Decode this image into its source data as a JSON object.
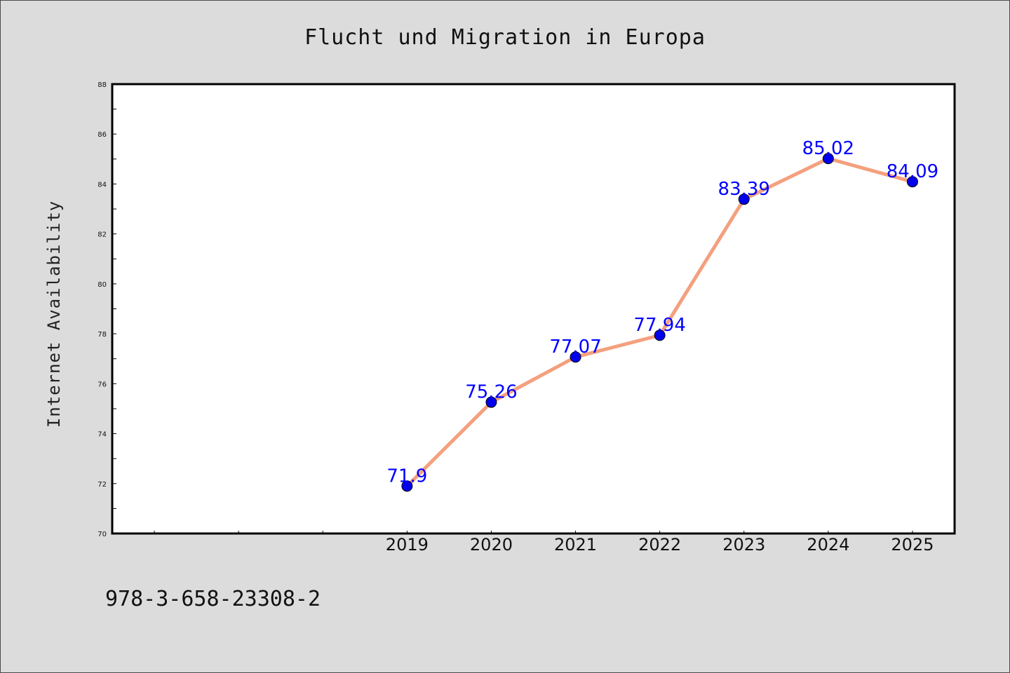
{
  "chart_data": {
    "type": "line",
    "title": "Flucht und Migration in Europa",
    "xlabel": "",
    "ylabel": "Internet Availability",
    "x": [
      "2019",
      "2020",
      "2021",
      "2022",
      "2023",
      "2024",
      "2025"
    ],
    "x_tick_labels": [
      "2019",
      "2020",
      "2021",
      "2022",
      "2023",
      "2024",
      "2025"
    ],
    "x_range": [
      2015.5,
      2025.5
    ],
    "series": [
      {
        "values": [
          71.9,
          75.26,
          77.07,
          77.94,
          83.39,
          85.02,
          84.09
        ],
        "data_labels": [
          "71.9",
          "75.26",
          "77.07",
          "77.94",
          "83.39",
          "85.02",
          "84.09"
        ],
        "line_color": "#f4a07e",
        "marker_color": "#0000ee"
      }
    ],
    "ylim": [
      70,
      88
    ],
    "y_ticks": [
      70,
      72,
      74,
      76,
      78,
      80,
      82,
      84,
      86,
      88
    ],
    "y_tick_labels": [
      "70",
      "72",
      "74",
      "76",
      "78",
      "80",
      "82",
      "84",
      "86",
      "88"
    ],
    "label_color": "#0000ff",
    "grid": false,
    "legend": "none"
  },
  "footer_text": "978-3-658-23308-2",
  "colors": {
    "background": "#dcdcdc",
    "plot_area": "#ffffff",
    "axis": "#000000"
  }
}
